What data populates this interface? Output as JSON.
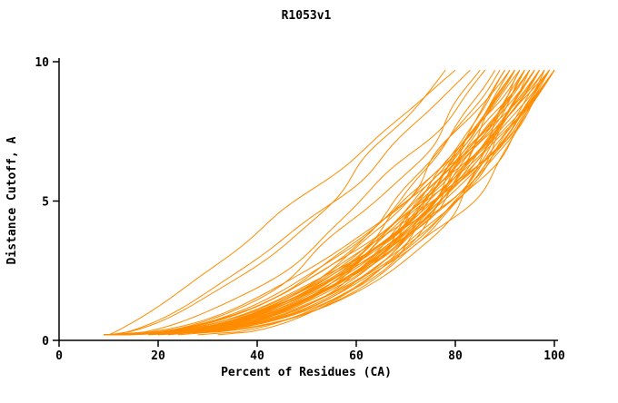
{
  "chart_data": {
    "type": "line",
    "title": "R1053v1",
    "xlabel": "Percent of Residues (CA)",
    "ylabel": "Distance Cutoff, A",
    "xlim": [
      0,
      100
    ],
    "ylim": [
      0,
      10
    ],
    "xticks": [
      0,
      20,
      40,
      60,
      80,
      100
    ],
    "yticks": [
      0,
      5,
      10
    ],
    "grid": false,
    "legend": false,
    "line_color": "#FF8C00",
    "y_start": 0.2,
    "y_end": 9.7,
    "curve_model": "x(y) = x0 + (xe - x0) * ((y - y_start)/(y_end - y_start))^p",
    "curves": [
      {
        "x0": 10,
        "xe": 80,
        "p": 0.88
      },
      {
        "x0": 11,
        "xe": 83,
        "p": 0.72
      },
      {
        "x0": 10,
        "xe": 78,
        "p": 0.62
      },
      {
        "x0": 12,
        "xe": 86,
        "p": 0.58
      },
      {
        "x0": 13,
        "xe": 85,
        "p": 0.5
      },
      {
        "x0": 9,
        "xe": 88,
        "p": 0.42
      },
      {
        "x0": 10,
        "xe": 89,
        "p": 0.45
      },
      {
        "x0": 11,
        "xe": 90,
        "p": 0.4
      },
      {
        "x0": 12,
        "xe": 90,
        "p": 0.36
      },
      {
        "x0": 9,
        "xe": 91,
        "p": 0.48
      },
      {
        "x0": 10,
        "xe": 91,
        "p": 0.38
      },
      {
        "x0": 11,
        "xe": 92,
        "p": 0.44
      },
      {
        "x0": 12,
        "xe": 92,
        "p": 0.34
      },
      {
        "x0": 13,
        "xe": 93,
        "p": 0.42
      },
      {
        "x0": 10,
        "xe": 93,
        "p": 0.37
      },
      {
        "x0": 11,
        "xe": 93,
        "p": 0.47
      },
      {
        "x0": 9,
        "xe": 92,
        "p": 0.4
      },
      {
        "x0": 10,
        "xe": 94,
        "p": 0.35
      },
      {
        "x0": 11,
        "xe": 94,
        "p": 0.43
      },
      {
        "x0": 12,
        "xe": 95,
        "p": 0.39
      },
      {
        "x0": 9,
        "xe": 95,
        "p": 0.46
      },
      {
        "x0": 10,
        "xe": 95,
        "p": 0.33
      },
      {
        "x0": 11,
        "xe": 96,
        "p": 0.41
      },
      {
        "x0": 12,
        "xe": 96,
        "p": 0.36
      },
      {
        "x0": 13,
        "xe": 96,
        "p": 0.45
      },
      {
        "x0": 9,
        "xe": 96,
        "p": 0.38
      },
      {
        "x0": 10,
        "xe": 97,
        "p": 0.42
      },
      {
        "x0": 11,
        "xe": 97,
        "p": 0.34
      },
      {
        "x0": 12,
        "xe": 97,
        "p": 0.47
      },
      {
        "x0": 14,
        "xe": 94,
        "p": 0.4
      },
      {
        "x0": 10,
        "xe": 98,
        "p": 0.36
      },
      {
        "x0": 11,
        "xe": 98,
        "p": 0.44
      },
      {
        "x0": 12,
        "xe": 98,
        "p": 0.32
      },
      {
        "x0": 9,
        "xe": 99,
        "p": 0.4
      },
      {
        "x0": 10,
        "xe": 99,
        "p": 0.46
      },
      {
        "x0": 11,
        "xe": 99,
        "p": 0.35
      },
      {
        "x0": 13,
        "xe": 99,
        "p": 0.42
      },
      {
        "x0": 10,
        "xe": 100,
        "p": 0.38
      },
      {
        "x0": 11,
        "xe": 100,
        "p": 0.33
      },
      {
        "x0": 12,
        "xe": 100,
        "p": 0.45
      },
      {
        "x0": 9,
        "xe": 100,
        "p": 0.41
      },
      {
        "x0": 14,
        "xe": 100,
        "p": 0.37
      },
      {
        "x0": 20,
        "xe": 95,
        "p": 0.45
      },
      {
        "x0": 24,
        "xe": 97,
        "p": 0.5
      },
      {
        "x0": 28,
        "xe": 99,
        "p": 0.48
      },
      {
        "x0": 32,
        "xe": 100,
        "p": 0.52
      },
      {
        "x0": 18,
        "xe": 92,
        "p": 0.42
      },
      {
        "x0": 22,
        "xe": 99,
        "p": 0.55
      }
    ]
  }
}
